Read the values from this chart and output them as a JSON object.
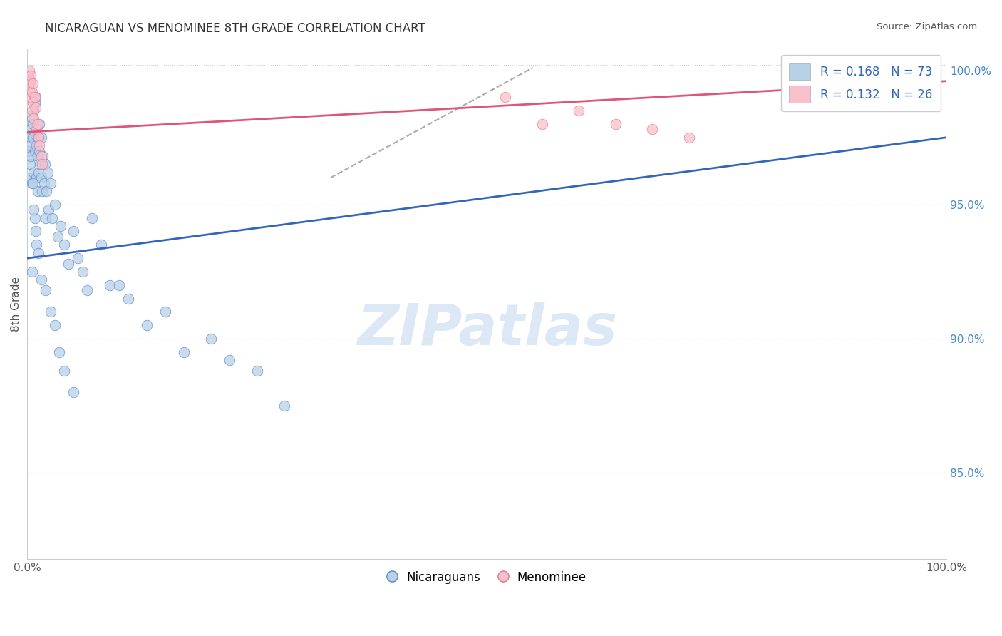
{
  "title": "NICARAGUAN VS MENOMINEE 8TH GRADE CORRELATION CHART",
  "source": "Source: ZipAtlas.com",
  "ylabel": "8th Grade",
  "legend_labels": [
    "Nicaraguans",
    "Menominee"
  ],
  "blue_R": 0.168,
  "blue_N": 73,
  "pink_R": 0.132,
  "pink_N": 26,
  "blue_color": "#b8d0e8",
  "blue_edge_color": "#5588cc",
  "blue_line_color": "#3366bb",
  "pink_color": "#f8c0cc",
  "pink_edge_color": "#dd7788",
  "pink_line_color": "#dd5577",
  "dashed_line_color": "#aaaaaa",
  "right_ytick_values": [
    0.85,
    0.9,
    0.95,
    1.0
  ],
  "right_ytick_labels": [
    "85.0%",
    "90.0%",
    "95.0%",
    "100.0%"
  ],
  "xlim": [
    0.0,
    1.0
  ],
  "ylim": [
    0.818,
    1.008
  ],
  "blue_trend": [
    0.0,
    1.0,
    0.93,
    0.975
  ],
  "pink_trend": [
    0.0,
    1.0,
    0.977,
    0.996
  ],
  "dash_trend": [
    0.33,
    0.55,
    0.96,
    1.001
  ],
  "blue_x": [
    0.001,
    0.002,
    0.002,
    0.003,
    0.003,
    0.004,
    0.004,
    0.005,
    0.005,
    0.006,
    0.006,
    0.007,
    0.007,
    0.008,
    0.008,
    0.009,
    0.009,
    0.01,
    0.01,
    0.011,
    0.011,
    0.012,
    0.012,
    0.013,
    0.013,
    0.014,
    0.015,
    0.015,
    0.016,
    0.017,
    0.018,
    0.019,
    0.02,
    0.021,
    0.022,
    0.023,
    0.025,
    0.027,
    0.03,
    0.033,
    0.036,
    0.04,
    0.045,
    0.05,
    0.055,
    0.06,
    0.065,
    0.07,
    0.08,
    0.09,
    0.1,
    0.11,
    0.13,
    0.15,
    0.17,
    0.2,
    0.22,
    0.25,
    0.28,
    0.01,
    0.008,
    0.006,
    0.005,
    0.007,
    0.009,
    0.012,
    0.015,
    0.02,
    0.025,
    0.03,
    0.035,
    0.04,
    0.05
  ],
  "blue_y": [
    0.96,
    0.97,
    0.975,
    0.965,
    0.972,
    0.968,
    0.978,
    0.982,
    0.958,
    0.975,
    0.98,
    0.962,
    0.985,
    0.988,
    0.97,
    0.976,
    0.99,
    0.96,
    0.972,
    0.955,
    0.968,
    0.975,
    0.962,
    0.98,
    0.97,
    0.965,
    0.96,
    0.975,
    0.955,
    0.968,
    0.958,
    0.965,
    0.945,
    0.955,
    0.962,
    0.948,
    0.958,
    0.945,
    0.95,
    0.938,
    0.942,
    0.935,
    0.928,
    0.94,
    0.93,
    0.925,
    0.918,
    0.945,
    0.935,
    0.92,
    0.92,
    0.915,
    0.905,
    0.91,
    0.895,
    0.9,
    0.892,
    0.888,
    0.875,
    0.935,
    0.945,
    0.958,
    0.925,
    0.948,
    0.94,
    0.932,
    0.922,
    0.918,
    0.91,
    0.905,
    0.895,
    0.888,
    0.88
  ],
  "pink_x": [
    0.001,
    0.002,
    0.002,
    0.003,
    0.003,
    0.004,
    0.004,
    0.005,
    0.005,
    0.006,
    0.006,
    0.007,
    0.008,
    0.009,
    0.01,
    0.011,
    0.012,
    0.013,
    0.015,
    0.016,
    0.52,
    0.56,
    0.6,
    0.64,
    0.68,
    0.72
  ],
  "pink_y": [
    0.998,
    0.995,
    1.0,
    0.992,
    0.996,
    0.99,
    0.998,
    0.985,
    0.992,
    0.988,
    0.995,
    0.982,
    0.99,
    0.986,
    0.978,
    0.98,
    0.975,
    0.972,
    0.968,
    0.965,
    0.99,
    0.98,
    0.985,
    0.98,
    0.978,
    0.975
  ]
}
